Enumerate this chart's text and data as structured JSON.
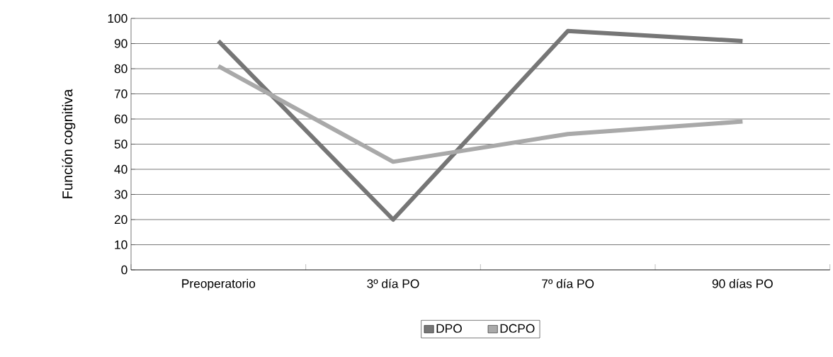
{
  "chart_data": {
    "type": "line",
    "ylabel": "Función cognitiva",
    "categories": [
      "Preoperatorio",
      "3º día PO",
      "7º día PO",
      "90 días PO"
    ],
    "series": [
      {
        "name": "DPO",
        "color": "#767676",
        "values": [
          91,
          20,
          95,
          91
        ]
      },
      {
        "name": "DCPO",
        "color": "#a9a9a9",
        "values": [
          81,
          43,
          54,
          59
        ]
      }
    ],
    "ylim": [
      0,
      100
    ],
    "yticks": [
      0,
      10,
      20,
      30,
      40,
      50,
      60,
      70,
      80,
      90,
      100
    ],
    "grid": "y",
    "legend": "bottom",
    "marker": "none",
    "line_style": "solid"
  }
}
